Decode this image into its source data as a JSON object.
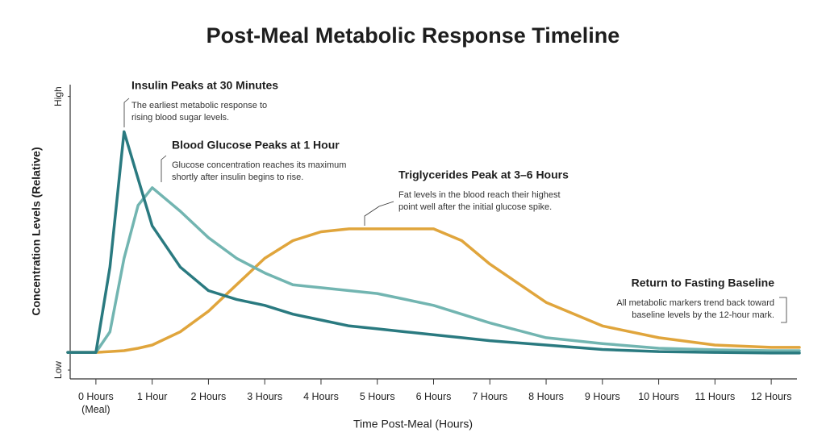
{
  "chart_data": {
    "type": "line",
    "title": "Post-Meal Metabolic Response Timeline",
    "x_label": "Time Post-Meal (Hours)",
    "y_label": "Concentration Levels (Relative)",
    "x": [
      -0.5,
      0,
      0.25,
      0.5,
      0.75,
      1,
      1.5,
      2,
      2.5,
      3,
      3.5,
      4,
      4.5,
      5,
      5.5,
      6,
      6.5,
      7,
      8,
      9,
      10,
      11,
      12,
      12.5
    ],
    "xlim": [
      -0.5,
      12.5
    ],
    "xticks": [
      {
        "value": 0,
        "label": "0 Hours\n(Meal)"
      },
      {
        "value": 1,
        "label": "1 Hour"
      },
      {
        "value": 2,
        "label": "2 Hours"
      },
      {
        "value": 3,
        "label": "3 Hours"
      },
      {
        "value": 4,
        "label": "4 Hours"
      },
      {
        "value": 5,
        "label": "5 Hours"
      },
      {
        "value": 6,
        "label": "6 Hours"
      },
      {
        "value": 7,
        "label": "7 Hours"
      },
      {
        "value": 8,
        "label": "8 Hours"
      },
      {
        "value": 9,
        "label": "9 Hours"
      },
      {
        "value": 10,
        "label": "10 Hours"
      },
      {
        "value": 11,
        "label": "11 Hours"
      },
      {
        "value": 12,
        "label": "12 Hours"
      }
    ],
    "ylim": [
      0,
      100
    ],
    "yticks": [
      {
        "value": 3,
        "label": "Low"
      },
      {
        "value": 96,
        "label": "High"
      }
    ],
    "series": [
      {
        "name": "Insulin",
        "color": "#2a7a80",
        "values": [
          9,
          9,
          38,
          84,
          68,
          52,
          38,
          30,
          27,
          25,
          22,
          20,
          18,
          17,
          16,
          15,
          14,
          13,
          11.5,
          10,
          9.3,
          9,
          8.8,
          8.8
        ]
      },
      {
        "name": "Blood Glucose",
        "color": "#72b5b1",
        "values": [
          9,
          9,
          16,
          41,
          59,
          65,
          57,
          48,
          41,
          36,
          32,
          31,
          30,
          29,
          27,
          25,
          22,
          19,
          14,
          12,
          10.4,
          9.9,
          9.6,
          9.6
        ]
      },
      {
        "name": "Triglycerides",
        "color": "#e0a53c",
        "values": [
          9,
          9,
          9.3,
          9.6,
          10.4,
          11.5,
          16,
          23,
          32,
          41,
          47,
          50,
          51,
          51,
          51,
          51,
          47,
          39,
          26,
          18,
          14,
          11.5,
          10.7,
          10.7
        ]
      }
    ],
    "annotations": [
      {
        "title": "Insulin Peaks at 30 Minutes",
        "body": [
          "The earliest metabolic response to",
          "rising blood sugar levels."
        ]
      },
      {
        "title": "Blood Glucose Peaks at 1 Hour",
        "body": [
          "Glucose concentration reaches its maximum",
          "shortly after insulin begins to rise."
        ]
      },
      {
        "title": "Triglycerides Peak at 3–6 Hours",
        "body": [
          "Fat levels in the blood reach their highest",
          "point well after the initial glucose spike."
        ]
      },
      {
        "title": "Return to Fasting Baseline",
        "body": [
          "All metabolic markers trend back toward",
          "baseline levels by the 12-hour mark."
        ]
      }
    ]
  }
}
